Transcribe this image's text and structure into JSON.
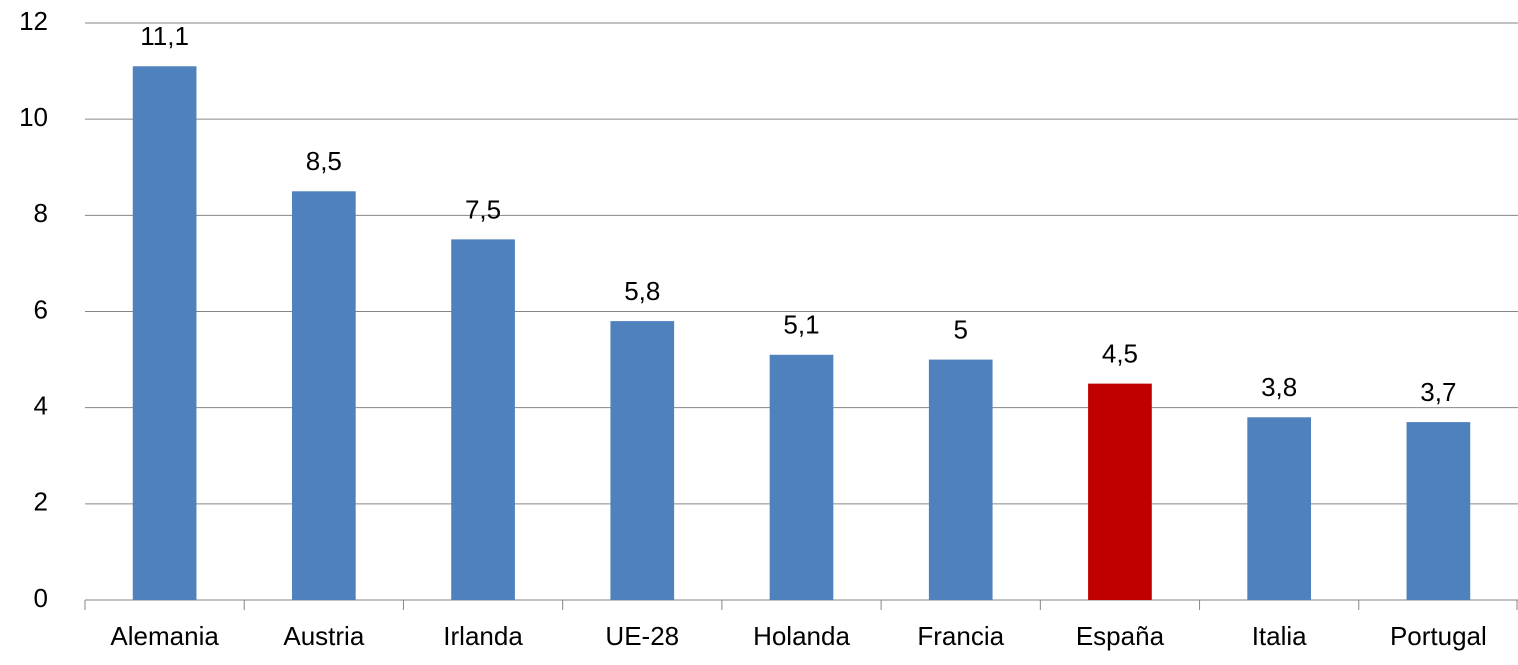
{
  "chart_data": {
    "type": "bar",
    "categories": [
      "Alemania",
      "Austria",
      "Irlanda",
      "UE-28",
      "Holanda",
      "Francia",
      "España",
      "Italia",
      "Portugal"
    ],
    "values": [
      11.1,
      8.5,
      7.5,
      5.8,
      5.1,
      5,
      4.5,
      3.8,
      3.7
    ],
    "value_labels": [
      "11,1",
      "8,5",
      "7,5",
      "5,8",
      "5,1",
      "5",
      "4,5",
      "3,8",
      "3,7"
    ],
    "colors": [
      "#4f81bd",
      "#4f81bd",
      "#4f81bd",
      "#4f81bd",
      "#4f81bd",
      "#4f81bd",
      "#c00000",
      "#4f81bd",
      "#4f81bd"
    ],
    "ylim": [
      0,
      12
    ],
    "yticks": [
      0,
      2,
      4,
      6,
      8,
      10,
      12
    ],
    "grid": true
  }
}
